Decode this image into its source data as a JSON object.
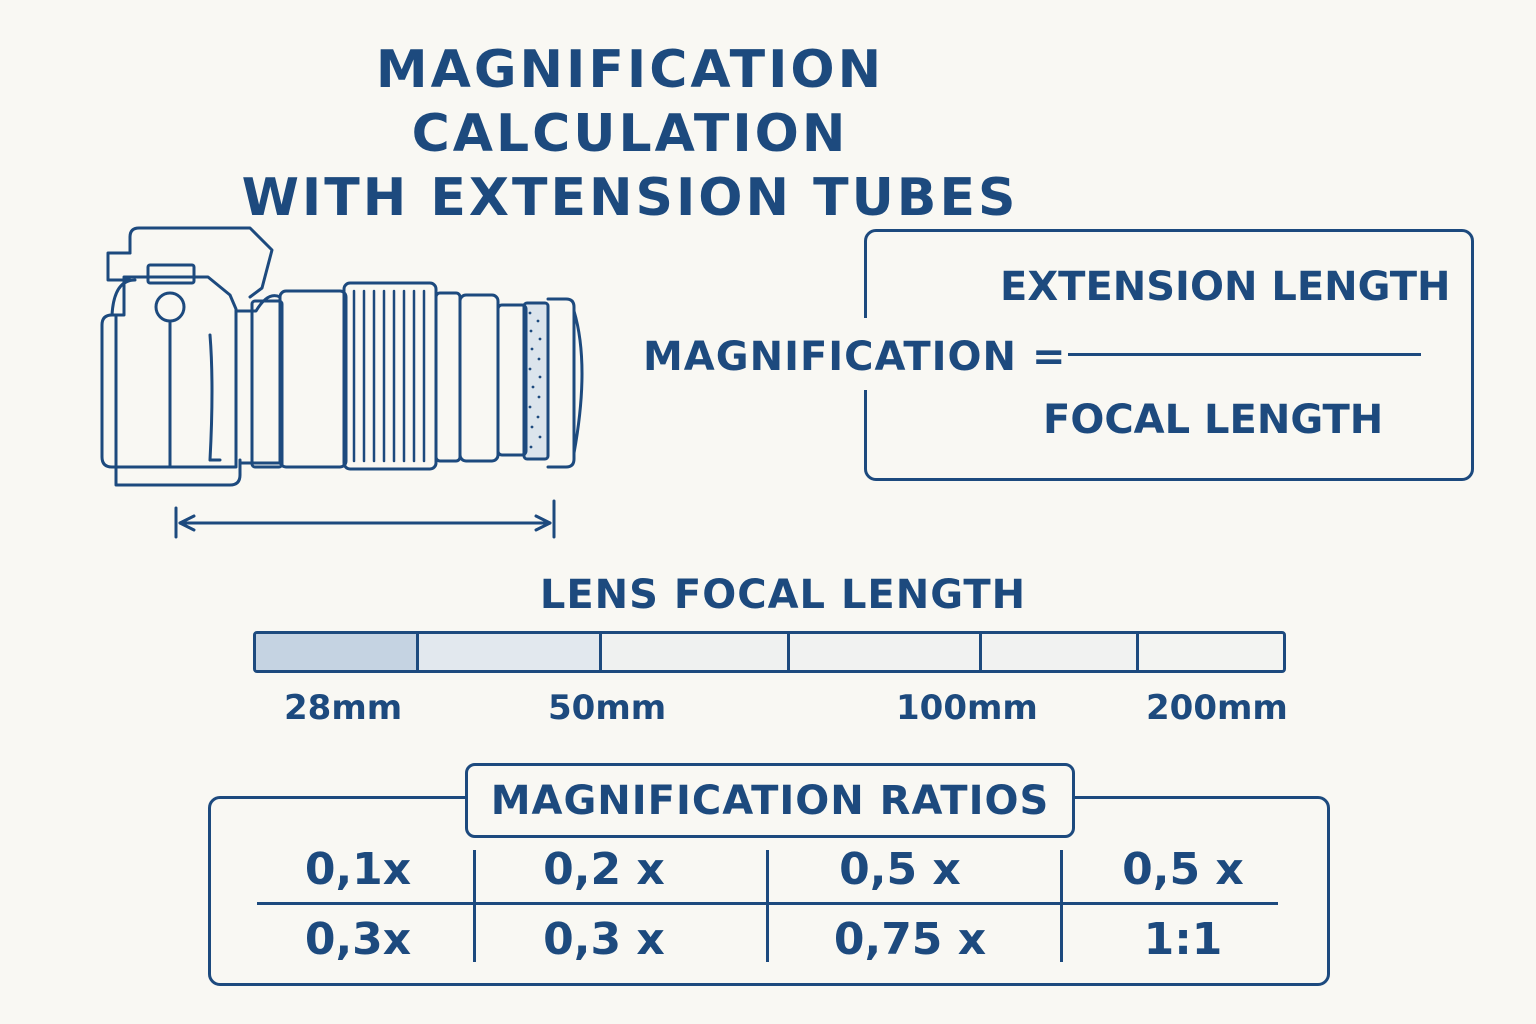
{
  "title": {
    "line1": "MAGNIFICATION CALCULATION",
    "line2": "WITH EXTENSION TUBES"
  },
  "colors": {
    "primary": "#1d4a7e",
    "background": "#f9f8f3",
    "bar_dark": "#c5d3e2",
    "bar_mid": "#e2e8ee",
    "bar_light": "#f1f2f1"
  },
  "formula": {
    "left": "MAGNIFICATION =",
    "numerator": "EXTENSION LENGTH",
    "denominator": "FOCAL LENGTH"
  },
  "focal_scale": {
    "title": "LENS FOCAL LENGTH",
    "labels": [
      "28mm",
      "50mm",
      "100mm",
      "200mm"
    ]
  },
  "ratios": {
    "title": "MAGNIFICATION RATIOS",
    "rows": [
      [
        "0,1x",
        "0,2 x",
        "0,5 x",
        "0,5 x"
      ],
      [
        "0,3x",
        "0,3 x",
        "0,75 x",
        "1:1"
      ]
    ]
  }
}
